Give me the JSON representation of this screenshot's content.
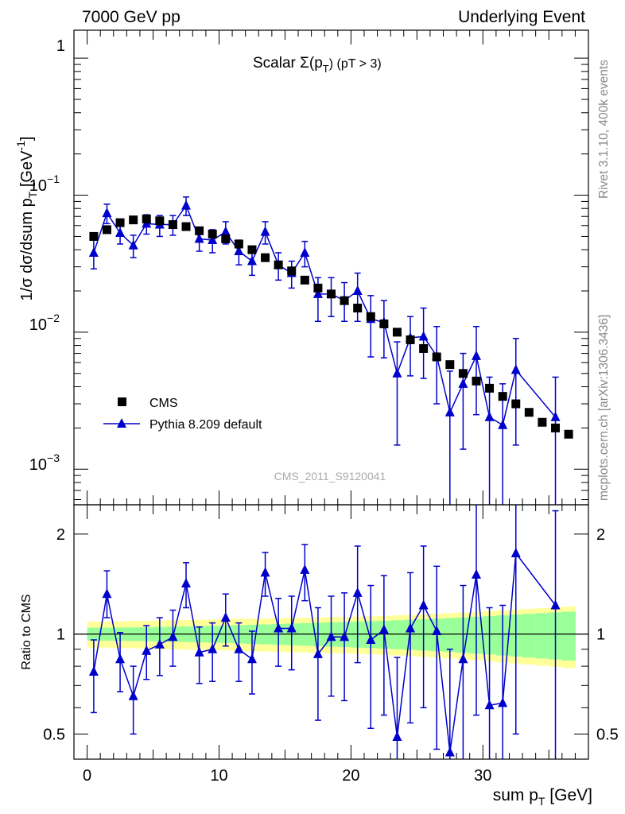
{
  "header": {
    "left": "7000 GeV pp",
    "right": "Underlying Event"
  },
  "side": {
    "rivet": "Rivet 3.1.10,  400k events",
    "mcplots": "mcplots.cern.ch [arXiv:1306.3436]"
  },
  "colors": {
    "mc": "#0000cc",
    "data": "#000000",
    "band_inner": "#99ff99",
    "band_outer": "#ffff99"
  },
  "chart_data": [
    {
      "type": "scatter",
      "title": "Scalar Σ(p_T) (pT >  3)",
      "title_main": "Scalar Σ(p",
      "title_sub": "T",
      "title_close": ") (pT >  3)",
      "watermark": "CMS_2011_S9120041",
      "ylabel": "1/σ dσ/dsum p_T [GeV^-1]",
      "ylabel_main": "1/σ dσ/dsum p",
      "ylabel_sub": "T",
      "ylabel_unit": " [GeV",
      "ylabel_sup": "-1",
      "ylabel_close": "]",
      "yscale": "log",
      "ylim": [
        0.00055,
        1.6
      ],
      "xlim": [
        -1,
        38
      ],
      "yticks": [
        {
          "value": 1,
          "base": "1",
          "exp": ""
        },
        {
          "value": 0.1,
          "base": "10",
          "exp": "−1"
        },
        {
          "value": 0.01,
          "base": "10",
          "exp": "−2"
        },
        {
          "value": 0.001,
          "base": "10",
          "exp": "−3"
        }
      ],
      "legend": {
        "position": "lower-left",
        "entries": [
          "CMS",
          "Pythia 8.209 default"
        ]
      },
      "series": [
        {
          "name": "CMS",
          "marker": "square",
          "x": [
            0.5,
            1.5,
            2.5,
            3.5,
            4.5,
            5.5,
            6.5,
            7.5,
            8.5,
            9.5,
            10.5,
            11.5,
            12.5,
            13.5,
            14.5,
            15.5,
            16.5,
            17.5,
            18.5,
            19.5,
            20.5,
            21.5,
            22.5,
            23.5,
            24.5,
            25.5,
            26.5,
            27.5,
            28.5,
            29.5,
            30.5,
            31.5,
            32.5,
            33.5,
            34.5,
            35.5,
            36.5
          ],
          "y": [
            0.05,
            0.056,
            0.063,
            0.066,
            0.067,
            0.065,
            0.061,
            0.059,
            0.055,
            0.052,
            0.048,
            0.044,
            0.04,
            0.035,
            0.031,
            0.028,
            0.024,
            0.021,
            0.019,
            0.017,
            0.015,
            0.013,
            0.0115,
            0.01,
            0.0088,
            0.0076,
            0.0066,
            0.0058,
            0.005,
            0.0044,
            0.0039,
            0.0034,
            0.003,
            0.0026,
            0.0022,
            0.002,
            0.0018
          ]
        },
        {
          "name": "Pythia 8.209 default",
          "marker": "triangle",
          "x": [
            0.5,
            1.5,
            2.5,
            3.5,
            4.5,
            5.5,
            6.5,
            7.5,
            8.5,
            9.5,
            10.5,
            11.5,
            12.5,
            13.5,
            14.5,
            15.5,
            16.5,
            17.5,
            18.5,
            19.5,
            20.5,
            21.5,
            22.5,
            23.5,
            24.5,
            25.5,
            26.5,
            27.5,
            28.5,
            29.5,
            30.5,
            31.5,
            32.5,
            35.5
          ],
          "y": [
            0.038,
            0.074,
            0.053,
            0.043,
            0.062,
            0.061,
            0.061,
            0.084,
            0.048,
            0.047,
            0.054,
            0.039,
            0.033,
            0.054,
            0.031,
            0.027,
            0.038,
            0.019,
            0.019,
            0.017,
            0.02,
            0.0125,
            0.0118,
            0.005,
            0.0091,
            0.0093,
            0.0067,
            0.0026,
            0.0042,
            0.0067,
            0.0024,
            0.0021,
            0.0053,
            0.0024
          ],
          "ylow": [
            0.029,
            0.062,
            0.044,
            0.035,
            0.052,
            0.05,
            0.051,
            0.071,
            0.039,
            0.038,
            0.044,
            0.031,
            0.026,
            0.044,
            0.024,
            0.021,
            0.03,
            0.012,
            0.013,
            0.012,
            0.012,
            0.0066,
            0.0065,
            0.0015,
            0.0048,
            0.0046,
            0.003,
            0.0001,
            0.0014,
            0.0025,
            0.0001,
            0.0001,
            0.0015,
            0.0001
          ],
          "yhigh": [
            0.047,
            0.086,
            0.062,
            0.051,
            0.072,
            0.071,
            0.071,
            0.097,
            0.057,
            0.056,
            0.064,
            0.047,
            0.04,
            0.064,
            0.038,
            0.033,
            0.046,
            0.025,
            0.025,
            0.023,
            0.027,
            0.0185,
            0.017,
            0.0085,
            0.013,
            0.015,
            0.011,
            0.0052,
            0.007,
            0.011,
            0.0047,
            0.0042,
            0.009,
            0.0047
          ]
        }
      ]
    },
    {
      "type": "scatter",
      "xlabel": "sum p_T [GeV]",
      "xlabel_main": "sum p",
      "xlabel_sub": "T",
      "xlabel_unit": " [GeV]",
      "ylabel": "Ratio to CMS",
      "yscale": "log",
      "ylim": [
        0.42,
        2.45
      ],
      "xlim": [
        -1,
        38
      ],
      "yticks": [
        0.5,
        1,
        2
      ],
      "xticks": [
        0,
        10,
        20,
        30
      ],
      "reference_line": 1,
      "band_bins": [
        0,
        1,
        2,
        3,
        4,
        5,
        6,
        7,
        8,
        9,
        10,
        11,
        12,
        13,
        14,
        15,
        16,
        17,
        18,
        19,
        20,
        21,
        22,
        23,
        24,
        25,
        26,
        27,
        28,
        29,
        30,
        31,
        32,
        33,
        34,
        35,
        36,
        37
      ],
      "band_inner_rel": [
        0.045,
        0.045,
        0.046,
        0.047,
        0.048,
        0.05,
        0.052,
        0.054,
        0.056,
        0.058,
        0.06,
        0.063,
        0.066,
        0.069,
        0.072,
        0.075,
        0.078,
        0.081,
        0.084,
        0.087,
        0.09,
        0.093,
        0.096,
        0.1,
        0.104,
        0.108,
        0.112,
        0.117,
        0.122,
        0.127,
        0.132,
        0.138,
        0.144,
        0.15,
        0.156,
        0.162,
        0.168
      ],
      "band_outer_rel": [
        0.09,
        0.09,
        0.092,
        0.094,
        0.096,
        0.098,
        0.1,
        0.102,
        0.104,
        0.106,
        0.108,
        0.11,
        0.112,
        0.114,
        0.116,
        0.118,
        0.12,
        0.122,
        0.124,
        0.126,
        0.128,
        0.131,
        0.134,
        0.138,
        0.142,
        0.146,
        0.151,
        0.156,
        0.161,
        0.167,
        0.173,
        0.179,
        0.185,
        0.191,
        0.197,
        0.203,
        0.21
      ],
      "series": [
        {
          "name": "Pythia 8.209 default / CMS",
          "x": [
            0.5,
            1.5,
            2.5,
            3.5,
            4.5,
            5.5,
            6.5,
            7.5,
            8.5,
            9.5,
            10.5,
            11.5,
            12.5,
            13.5,
            14.5,
            15.5,
            16.5,
            17.5,
            18.5,
            19.5,
            20.5,
            21.5,
            22.5,
            23.5,
            24.5,
            25.5,
            26.5,
            27.5,
            28.5,
            29.5,
            30.5,
            31.5,
            32.5,
            35.5
          ],
          "y": [
            0.77,
            1.32,
            0.84,
            0.65,
            0.89,
            0.93,
            0.98,
            1.42,
            0.88,
            0.9,
            1.12,
            0.9,
            0.84,
            1.53,
            1.04,
            1.04,
            1.56,
            0.87,
            0.98,
            0.98,
            1.33,
            0.96,
            1.03,
            0.49,
            1.04,
            1.22,
            1.02,
            0.44,
            0.84,
            1.51,
            0.61,
            0.62,
            1.75,
            1.22
          ],
          "ylow": [
            0.58,
            1.12,
            0.67,
            0.5,
            0.73,
            0.75,
            0.8,
            1.2,
            0.71,
            0.72,
            0.92,
            0.72,
            0.66,
            1.3,
            0.8,
            0.78,
            1.26,
            0.55,
            0.65,
            0.63,
            0.82,
            0.52,
            0.57,
            0.15,
            0.54,
            0.6,
            0.45,
            0.01,
            0.28,
            0.57,
            0.02,
            0.02,
            0.5,
            0.05
          ],
          "yhigh": [
            0.96,
            1.55,
            1.01,
            0.8,
            1.06,
            1.12,
            1.18,
            1.64,
            1.05,
            1.08,
            1.32,
            1.08,
            1.02,
            1.76,
            1.28,
            1.3,
            1.86,
            1.2,
            1.3,
            1.33,
            1.84,
            1.4,
            1.5,
            0.85,
            1.53,
            1.84,
            1.6,
            0.9,
            1.4,
            2.5,
            1.2,
            1.22,
            3.0,
            2.35
          ]
        }
      ]
    }
  ]
}
